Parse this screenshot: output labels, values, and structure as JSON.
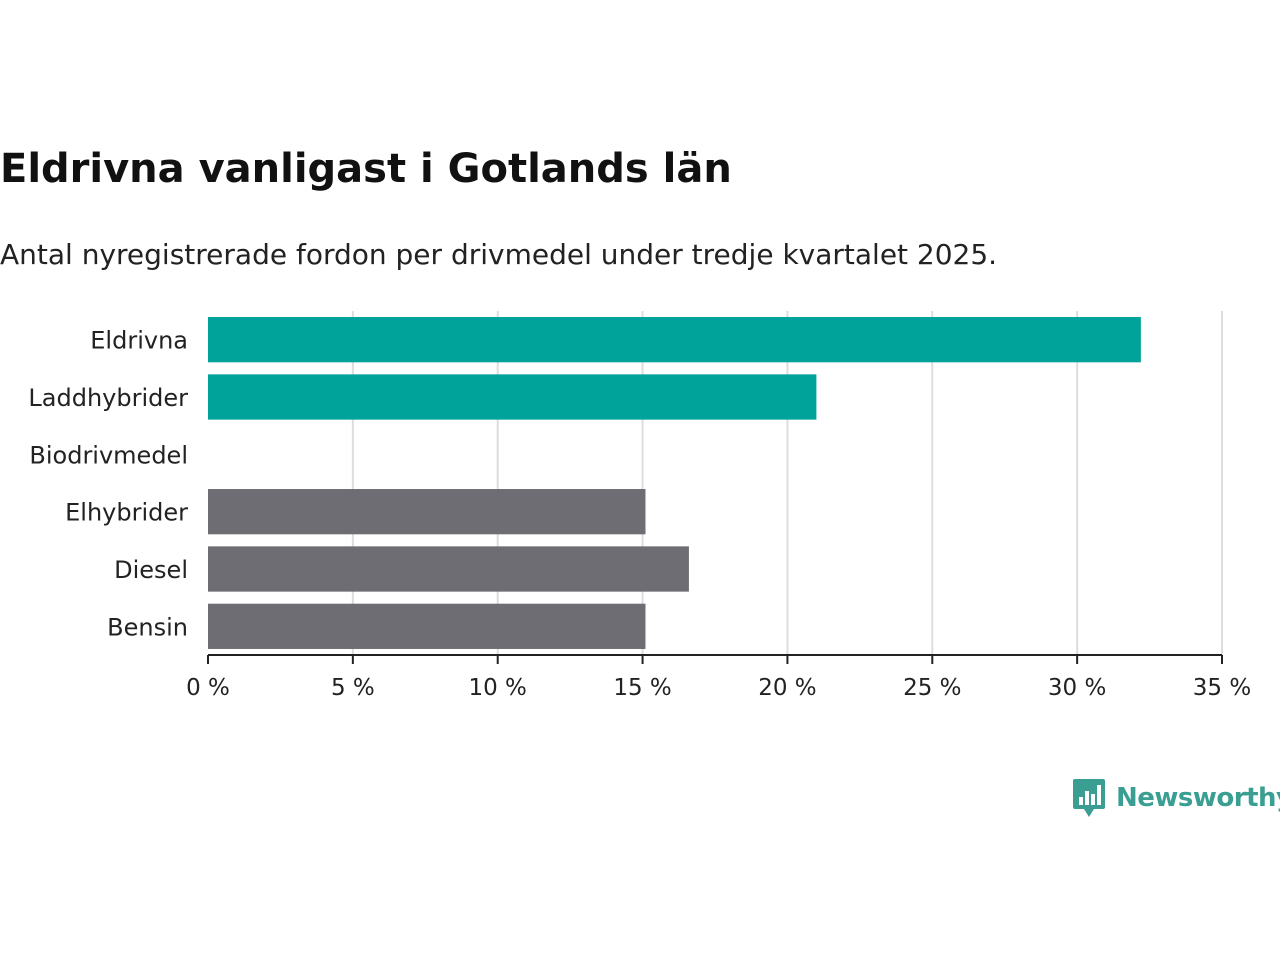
{
  "title": "Eldrivna vanligast i Gotlands län",
  "subtitle": "Antal nyregistrerade fordon per drivmedel under tredje kvartalet 2025.",
  "brand": {
    "name": "Newsworthy",
    "color": "#3a9e92"
  },
  "colors": {
    "highlight": "#00a39a",
    "default": "#6e6d73",
    "grid": "#dddddd",
    "axis": "#222222"
  },
  "chart_data": {
    "type": "bar",
    "orientation": "horizontal",
    "title": "Eldrivna vanligast i Gotlands län",
    "subtitle": "Antal nyregistrerade fordon per drivmedel under tredje kvartalet 2025.",
    "categories": [
      "Eldrivna",
      "Laddhybrider",
      "Biodrivmedel",
      "Elhybrider",
      "Diesel",
      "Bensin"
    ],
    "values": [
      32.2,
      21.0,
      0,
      15.1,
      16.6,
      15.1
    ],
    "highlighted": [
      true,
      true,
      false,
      false,
      false,
      false
    ],
    "xlim": [
      0,
      35
    ],
    "xticks": [
      0,
      5,
      10,
      15,
      20,
      25,
      30,
      35
    ],
    "xtick_labels": [
      "0 %",
      "5 %",
      "10 %",
      "15 %",
      "20 %",
      "25 %",
      "30 %",
      "35 %"
    ],
    "unit": "%",
    "xlabel": "",
    "ylabel": "",
    "grid": true
  }
}
